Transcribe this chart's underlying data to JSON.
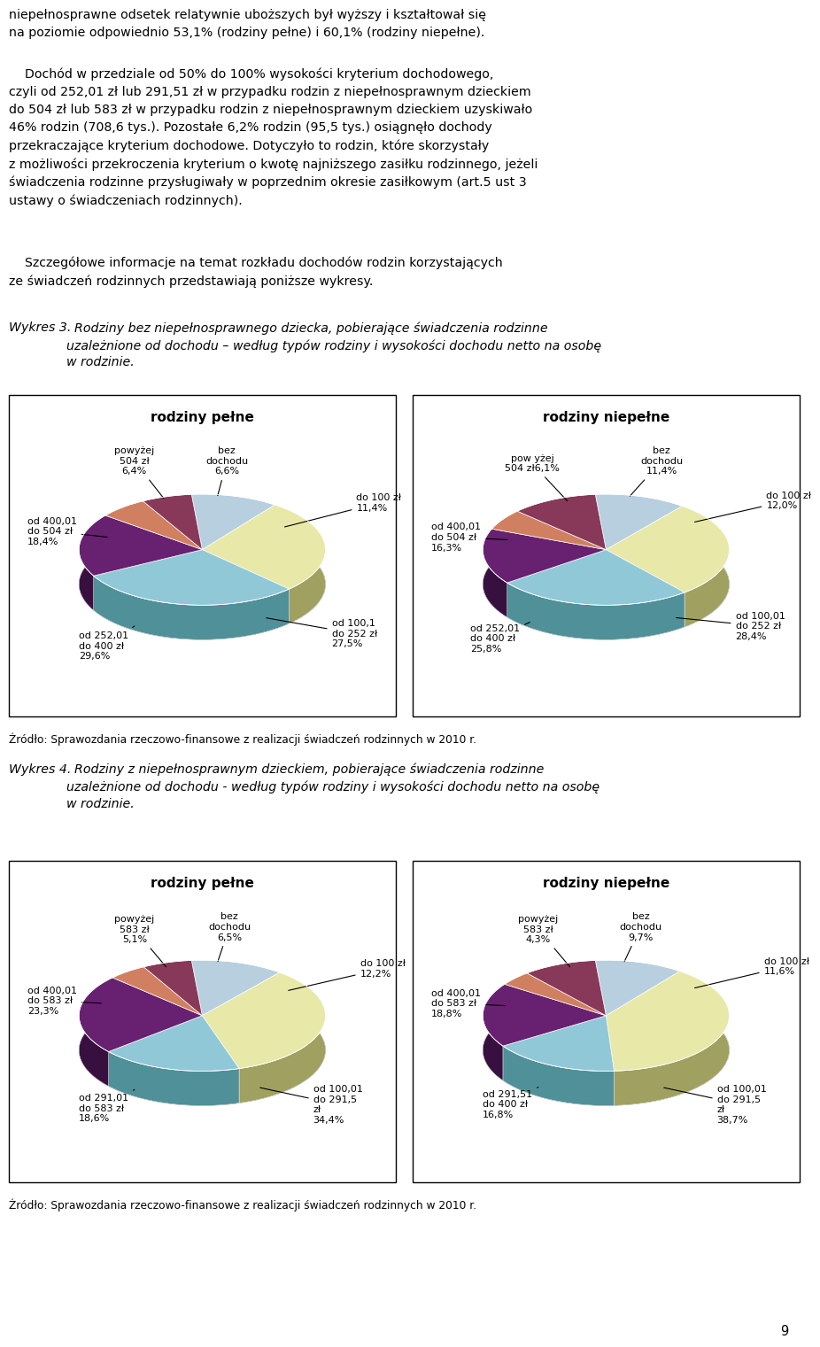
{
  "page_text_lines_1": "niepełnosprawne odsetek relatywnie uboższych był wyższy i kształtował się\nna poziomie odpowiednio 53,1% (rodziny pełne) i 60,1% (rodziny niepełne).",
  "page_text_indent": "    Dochód w przedziale od 50% do 100% wysokości kryterium dochodowego,\nczyli od 252,01 zł lub 291,51 zł w przypadku rodzin z niepełnosprawnym dzieckiem\ndo 504 zł lub 583 zł w przypadku rodzin z niepełnosprawnym dzieckiem uzyskiwało\n46% rodzin (708,6 tys.). Pozostałe 6,2% rodzin (95,5 tys.) osiągnęło dochody\nprzekraczające kryterium dochodowe. Dotyczyło to rodzin, które skorzystały\nz możliwości przekroczenia kryterium o kwotę najniższego zasiłku rodzinnego, jeżeli\nświadczenia rodzinne przysługiwały w poprzednim okresie zasiłkowym (art.5 ust 3\nustawy o świadczeniach rodzinnych).",
  "page_text_indent2": "    Szczegółowe informacje na temat rozkładu dochodów rodzin korzystających\nze świadczeń rodzinnych przedstawiają poniższe wykresy.",
  "wykres3_title_bold": "Wykres 3.",
  "wykres3_title_italic": "  Rodziny bez niepełnosprawnego dziecka, pobierające świadczenia rodzinne\nuzależnione od dochodu – według typów rodziny i wysokości dochodu netto na osobę\nw rodzinie.",
  "wykres4_title_bold": "Wykres 4.",
  "wykres4_title_italic": "  Rodziny z niepełnosprawnym dzieckiem, pobierające świadczenia rodzinne\nuzależnione od dochodu - według typów rodziny i wysokości dochodu netto na osobę\nw rodzinie.",
  "source_text": "Źródło: Sprawozdania rzeczowo-finansowe z realizacji świadczeń rodzinnych w 2010 r.",
  "chart3_pelne_title": "rodziny pełne",
  "chart3_pelne_values": [
    11.4,
    27.5,
    29.6,
    18.4,
    6.4,
    6.6
  ],
  "chart3_pelne_colors": [
    "#b8cfe0",
    "#e8e8a8",
    "#90c8d8",
    "#682070",
    "#d08060",
    "#883858"
  ],
  "chart3_pelne_shadow_colors": [
    "#8090a0",
    "#a0a060",
    "#509098",
    "#381040",
    "#905040",
    "#582840"
  ],
  "chart3_niepelne_title": "rodziny niepełne",
  "chart3_niepelne_values": [
    12.0,
    28.4,
    25.8,
    16.3,
    6.1,
    11.4
  ],
  "chart3_niepelne_colors": [
    "#b8cfe0",
    "#e8e8a8",
    "#90c8d8",
    "#682070",
    "#d08060",
    "#883858"
  ],
  "chart3_niepelne_shadow_colors": [
    "#8090a0",
    "#a0a060",
    "#509098",
    "#381040",
    "#905040",
    "#582840"
  ],
  "chart4_pelne_title": "rodziny pełne",
  "chart4_pelne_values": [
    12.2,
    34.4,
    18.6,
    23.3,
    5.1,
    6.5
  ],
  "chart4_pelne_colors": [
    "#b8cfe0",
    "#e8e8a8",
    "#90c8d8",
    "#682070",
    "#d08060",
    "#883858"
  ],
  "chart4_pelne_shadow_colors": [
    "#8090a0",
    "#a0a060",
    "#509098",
    "#381040",
    "#905040",
    "#582840"
  ],
  "chart4_niepelne_title": "rodziny niepełne",
  "chart4_niepelne_values": [
    11.6,
    38.7,
    16.8,
    18.8,
    4.3,
    9.7
  ],
  "chart4_niepelne_colors": [
    "#b8cfe0",
    "#e8e8a8",
    "#90c8d8",
    "#682070",
    "#d08060",
    "#883858"
  ],
  "chart4_niepelne_shadow_colors": [
    "#8090a0",
    "#a0a060",
    "#509098",
    "#381040",
    "#905040",
    "#582840"
  ],
  "page_number": "9",
  "bg_color": "#ffffff"
}
